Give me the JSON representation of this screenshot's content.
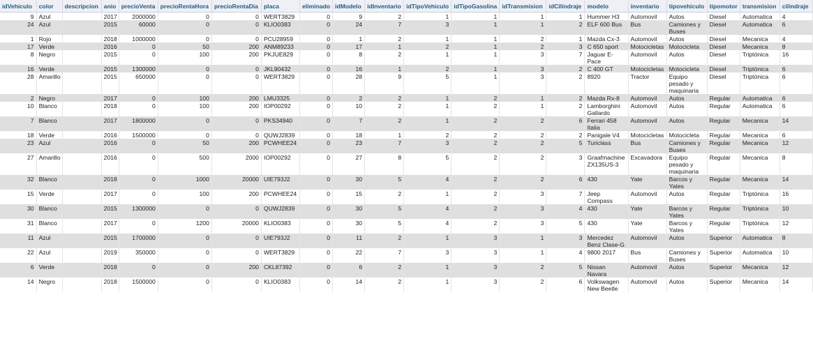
{
  "columns": [
    {
      "key": "idVehiculo",
      "label": "idVehiculo",
      "num": true
    },
    {
      "key": "color",
      "label": "color",
      "num": false
    },
    {
      "key": "descripcion",
      "label": "descripcion",
      "num": false
    },
    {
      "key": "anio",
      "label": "anio",
      "num": false
    },
    {
      "key": "precioVenta",
      "label": "precioVenta",
      "num": true
    },
    {
      "key": "precioRentaHora",
      "label": "precioRentaHora",
      "num": true
    },
    {
      "key": "precioRentaDia",
      "label": "precioRentaDia",
      "num": true
    },
    {
      "key": "placa",
      "label": "placa",
      "num": false
    },
    {
      "key": "eliminado",
      "label": "eliminado",
      "num": true
    },
    {
      "key": "idModelo",
      "label": "idModelo",
      "num": true
    },
    {
      "key": "idInventario",
      "label": "idInventario",
      "num": true
    },
    {
      "key": "idTipoVehiculo",
      "label": "idTipoVehiculo",
      "num": true
    },
    {
      "key": "idTipoGasolina",
      "label": "idTipoGasolina",
      "num": true
    },
    {
      "key": "idTransmision",
      "label": "idTransmision",
      "num": true
    },
    {
      "key": "idCilindraje",
      "label": "idCilindraje",
      "num": true
    },
    {
      "key": "modelo",
      "label": "modelo",
      "num": false
    },
    {
      "key": "inventario",
      "label": "inventario",
      "num": false
    },
    {
      "key": "tipovehiculo",
      "label": "tipovehiculo",
      "num": false
    },
    {
      "key": "tipomotor",
      "label": "tipomotor",
      "num": false
    },
    {
      "key": "transmision",
      "label": "transmision",
      "num": false
    },
    {
      "key": "cilindraje",
      "label": "cilindraje",
      "num": false
    }
  ],
  "rows": [
    [
      "9",
      "Azul",
      "",
      "2017",
      "2000000",
      "0",
      "0",
      "WERT3829",
      "0",
      "9",
      "2",
      "1",
      "1",
      "1",
      "1",
      "Hummer H3",
      "Automovil",
      "Autos",
      "Diesel",
      "Automatica",
      "4"
    ],
    [
      "24",
      "Azul",
      "",
      "2015",
      "60000",
      "0",
      "0",
      "KLIO0383",
      "0",
      "24",
      "7",
      "3",
      "1",
      "1",
      "2",
      "ELF 600 Bus",
      "Bus",
      "Camiones y Buses",
      "Diesel",
      "Automatica",
      "6"
    ],
    [
      "1",
      "Rojo",
      "",
      "2018",
      "1000000",
      "0",
      "0",
      "PCU28959",
      "0",
      "1",
      "2",
      "1",
      "1",
      "2",
      "1",
      "Mazda Cx-3",
      "Automovil",
      "Autos",
      "Diesel",
      "Mecanica",
      "4"
    ],
    [
      "17",
      "Verde",
      "",
      "2016",
      "0",
      "50",
      "200",
      "ANM89233",
      "0",
      "17",
      "1",
      "2",
      "1",
      "2",
      "3",
      "C 650 sport",
      "Motocicletas",
      "Motocicleta",
      "Diesel",
      "Mecanica",
      "8"
    ],
    [
      "8",
      "Negro",
      "",
      "2015",
      "0",
      "100",
      "200",
      "PKJUE829",
      "0",
      "8",
      "2",
      "1",
      "1",
      "3",
      "7",
      "Jaguar E-Pace",
      "Automovil",
      "Autos",
      "Diesel",
      "Triptónica",
      "16"
    ],
    [
      "16",
      "Verde",
      "",
      "2015",
      "1300000",
      "0",
      "0",
      "JKL90432",
      "0",
      "16",
      "1",
      "2",
      "1",
      "3",
      "2",
      "C 400 GT",
      "Motocicletas",
      "Motocicleta",
      "Diesel",
      "Triptónica",
      "6"
    ],
    [
      "28",
      "Amarillo",
      "",
      "2015",
      "650000",
      "0",
      "0",
      "WERT3829",
      "0",
      "28",
      "9",
      "5",
      "1",
      "3",
      "2",
      "8920",
      "Tractor",
      "Equipo pesado y maquinaria",
      "Diesel",
      "Triptónica",
      "6"
    ],
    [
      "2",
      "Negro",
      "",
      "2017",
      "0",
      "100",
      "200",
      "LMU3325",
      "0",
      "2",
      "2",
      "1",
      "2",
      "1",
      "2",
      "Mazda Rx-8",
      "Automovil",
      "Autos",
      "Regular",
      "Automatica",
      "6"
    ],
    [
      "10",
      "Blanco",
      "",
      "2018",
      "0",
      "100",
      "200",
      "IOP00292",
      "0",
      "10",
      "2",
      "1",
      "2",
      "1",
      "2",
      "Lamborghini Gallardo",
      "Automovil",
      "Autos",
      "Regular",
      "Automatica",
      "6"
    ],
    [
      "7",
      "Blanco",
      "",
      "2017",
      "1800000",
      "0",
      "0",
      "PKS34940",
      "0",
      "7",
      "2",
      "1",
      "2",
      "2",
      "6",
      "Ferrari 458 Italia",
      "Automovil",
      "Autos",
      "Regular",
      "Mecanica",
      "14"
    ],
    [
      "18",
      "Verde",
      "",
      "2016",
      "1500000",
      "0",
      "0",
      "QUWJ2839",
      "0",
      "18",
      "1",
      "2",
      "2",
      "2",
      "2",
      "Panigale V4",
      "Motocicletas",
      "Motocicleta",
      "Regular",
      "Mecanica",
      "6"
    ],
    [
      "23",
      "Azul",
      "",
      "2016",
      "0",
      "50",
      "200",
      "PCWHEE24",
      "0",
      "23",
      "7",
      "3",
      "2",
      "2",
      "5",
      "Turiclass",
      "Bus",
      "Camiones y Buses",
      "Regular",
      "Mecanica",
      "12"
    ],
    [
      "27",
      "Amarillo",
      "",
      "2016",
      "0",
      "500",
      "2000",
      "IOP00292",
      "0",
      "27",
      "8",
      "5",
      "2",
      "2",
      "3",
      "Graafmachine ZX135US-3",
      "Excavadora",
      "Equipo pesado y maquinaria",
      "Regular",
      "Mecanica",
      "8"
    ],
    [
      "32",
      "Blanco",
      "",
      "2018",
      "0",
      "1000",
      "20000",
      "UIE793J2",
      "0",
      "30",
      "5",
      "4",
      "2",
      "2",
      "6",
      "430",
      "Yate",
      "Barcos y Yates",
      "Regular",
      "Mecanica",
      "14"
    ],
    [
      "15",
      "Verde",
      "",
      "2017",
      "0",
      "100",
      "200",
      "PCWHEE24",
      "0",
      "15",
      "2",
      "1",
      "2",
      "3",
      "7",
      "Jeep Compass",
      "Automovil",
      "Autos",
      "Regular",
      "Triptónica",
      "16"
    ],
    [
      "30",
      "Blanco",
      "",
      "2015",
      "1300000",
      "0",
      "0",
      "QUWJ2839",
      "0",
      "30",
      "5",
      "4",
      "2",
      "3",
      "4",
      "430",
      "Yate",
      "Barcos y Yates",
      "Regular",
      "Triptónica",
      "10"
    ],
    [
      "31",
      "Blanco",
      "",
      "2017",
      "0",
      "1200",
      "20000",
      "KLIO0383",
      "0",
      "30",
      "5",
      "4",
      "2",
      "3",
      "5",
      "430",
      "Yate",
      "Barcos y Yates",
      "Regular",
      "Triptónica",
      "12"
    ],
    [
      "11",
      "Azul",
      "",
      "2015",
      "1700000",
      "0",
      "0",
      "UIE793J2",
      "0",
      "11",
      "2",
      "1",
      "3",
      "1",
      "3",
      "Mercedez Benz Clase-G",
      "Automovil",
      "Autos",
      "Superior",
      "Automatica",
      "8"
    ],
    [
      "22",
      "Azul",
      "",
      "2019",
      "350000",
      "0",
      "0",
      "WERT3829",
      "0",
      "22",
      "7",
      "3",
      "3",
      "1",
      "4",
      "9800 2017",
      "Bus",
      "Camiones y Buses",
      "Superior",
      "Automatica",
      "10"
    ],
    [
      "6",
      "Verde",
      "",
      "2018",
      "0",
      "0",
      "200",
      "CKL87392",
      "0",
      "6",
      "2",
      "1",
      "3",
      "2",
      "5",
      "Nissan Navara",
      "Automovil",
      "Autos",
      "Superior",
      "Mecanica",
      "12"
    ],
    [
      "14",
      "Negro",
      "",
      "2018",
      "1500000",
      "0",
      "0",
      "KLIO0383",
      "0",
      "14",
      "2",
      "1",
      "3",
      "2",
      "6",
      "Volkswagen New Beetle",
      "Automovil",
      "Autos",
      "Superior",
      "Mecanica",
      "14"
    ]
  ]
}
